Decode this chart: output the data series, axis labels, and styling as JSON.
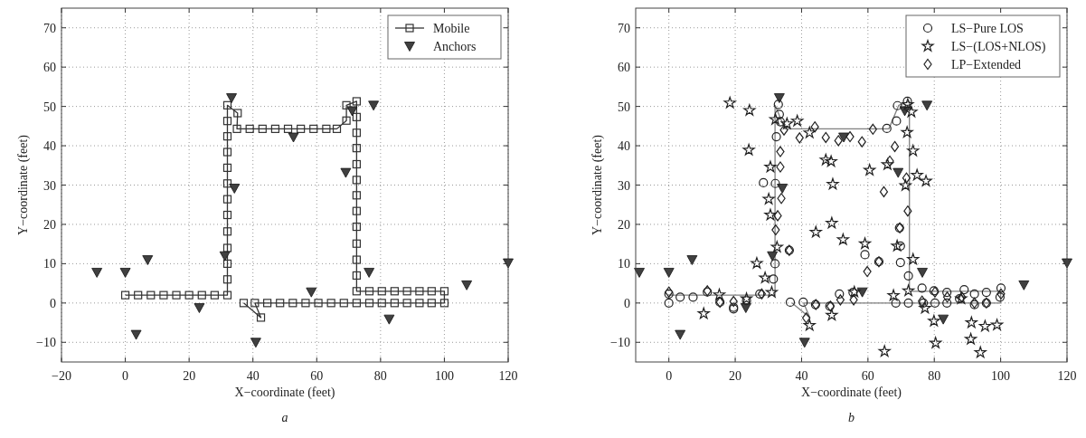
{
  "chart_data": [
    {
      "type": "scatter",
      "xlabel": "X−coordinate (feet)",
      "ylabel": "Y−coordinate (feet)",
      "annotations": [
        "a"
      ],
      "xlim": [
        -20,
        120
      ],
      "ylim": [
        -15,
        75
      ],
      "xticks": [
        -20,
        0,
        20,
        40,
        60,
        80,
        100,
        120
      ],
      "yticks": [
        -10,
        0,
        10,
        20,
        30,
        40,
        50,
        60,
        70
      ],
      "grid": true,
      "legend": "top right",
      "series": [
        {
          "name": "Mobile",
          "type": "line",
          "marker": "square",
          "color": "#333333",
          "x": [
            0,
            4,
            8,
            12,
            16,
            20,
            24,
            28,
            32,
            32,
            32,
            32,
            32,
            32,
            32,
            32,
            32,
            32,
            32,
            32,
            32,
            35.2,
            35,
            39,
            43,
            47,
            51,
            55,
            59,
            63,
            66.3,
            69.3,
            69.3,
            72.5,
            72.5,
            72.5,
            72.5,
            72.5,
            72.5,
            72.5,
            72.5,
            72.5,
            72.5,
            72.5,
            72.5,
            72.5,
            76.5,
            80.4,
            84.4,
            88.3,
            92.2,
            96,
            100,
            100,
            96,
            92.2,
            88.3,
            84.4,
            80.4,
            76.5,
            72.5,
            68.5,
            64.5,
            60.5,
            56.5,
            52.5,
            48.5,
            44.5,
            40.6,
            42.5,
            37.1
          ],
          "values": [
            2,
            2,
            2,
            2,
            2,
            2,
            2,
            2,
            2,
            6,
            10,
            14,
            18.2,
            22.4,
            26.4,
            30.4,
            34.4,
            38.4,
            42.4,
            46.3,
            50.3,
            48.3,
            44.3,
            44.3,
            44.3,
            44.3,
            44.3,
            44.3,
            44.3,
            44.3,
            44.3,
            46.4,
            50.3,
            51.3,
            47.3,
            43.3,
            39.4,
            35.3,
            31.3,
            27.4,
            23.4,
            19.4,
            15.1,
            11,
            7,
            3,
            3,
            3,
            3,
            3,
            3,
            3,
            3,
            0,
            0,
            0,
            0,
            0,
            0,
            0,
            0,
            0,
            0,
            0,
            0,
            0,
            0,
            0,
            0,
            -3.7,
            0
          ]
        },
        {
          "name": "Anchors",
          "type": "scatter",
          "marker": "triangle",
          "color": "#404040",
          "x": [
            -8.9,
            0,
            7,
            3.4,
            23.2,
            31.2,
            33.3,
            34.2,
            52.7,
            40.9,
            58.3,
            69.1,
            71.1,
            77.8,
            76.4,
            82.7,
            107,
            120
          ],
          "values": [
            7.8,
            7.8,
            11,
            -8,
            -1.2,
            12,
            52.2,
            29.2,
            42.2,
            -10,
            2.8,
            33.2,
            48.9,
            50.3,
            7.8,
            -4.1,
            4.6,
            10.2
          ]
        }
      ]
    },
    {
      "type": "scatter",
      "xlabel": "X−coordinate (feet)",
      "ylabel": "Y−coordinate (feet)",
      "annotations": [
        "b"
      ],
      "xlim": [
        -10,
        120
      ],
      "ylim": [
        -15,
        75
      ],
      "xticks": [
        0,
        20,
        40,
        60,
        80,
        100,
        120
      ],
      "yticks": [
        -10,
        0,
        10,
        20,
        30,
        40,
        50,
        60,
        70
      ],
      "grid": true,
      "legend": "top right",
      "series": [
        {
          "type": "line",
          "marker": "none",
          "color": "#808080",
          "x": [
            0,
            32,
            32,
            35,
            66.3,
            69.3,
            72.5,
            72.5,
            100,
            100,
            40.6,
            42.5,
            37.1
          ],
          "values": [
            2,
            2,
            50.3,
            44.3,
            44.3,
            50.3,
            51.3,
            3,
            3,
            0,
            0,
            -3.7,
            0
          ]
        },
        {
          "type": "scatter",
          "marker": "triangle",
          "color": "#404040",
          "x": [
            -8.9,
            0,
            7,
            3.4,
            23.2,
            31.2,
            33.3,
            34.2,
            52.7,
            40.9,
            58.3,
            69.1,
            71.1,
            77.8,
            76.4,
            82.7,
            107,
            120
          ],
          "values": [
            7.8,
            7.8,
            11,
            -8,
            -1.2,
            12,
            52.2,
            29.2,
            42.2,
            -10,
            2.8,
            33.2,
            48.9,
            50.3,
            7.8,
            -4.1,
            4.6,
            10.2
          ]
        },
        {
          "name": "LS−Pure LOS",
          "type": "scatter",
          "marker": "circle",
          "color": "#222222",
          "x": [
            0,
            0,
            3.4,
            7.3,
            11.6,
            15.4,
            19.5,
            23.4,
            27.4,
            28.5,
            31.5,
            32,
            32.1,
            33,
            33.3,
            33.6,
            32.4,
            36.3,
            36.6,
            40.5,
            44.2,
            48.5,
            51.4,
            55.5,
            59.1,
            63.3,
            65.7,
            68.6,
            68.9,
            71.9,
            69.5,
            69.8,
            69.8,
            68.4,
            72.2,
            72.2,
            76.3,
            76.7,
            79.9,
            80.2,
            83.8,
            83.8,
            87.6,
            89,
            92.1,
            92.1,
            95.7,
            95.7,
            100.1,
            99.8,
            19.5
          ],
          "values": [
            0,
            2.3,
            1.5,
            1.5,
            2.8,
            0.2,
            -1.1,
            0.6,
            2.3,
            30.6,
            6.1,
            10,
            30.4,
            50.5,
            48,
            46.1,
            42.3,
            13.4,
            0.2,
            0.2,
            -0.4,
            -0.8,
            2.3,
            2.7,
            12.3,
            10.5,
            44.4,
            46.3,
            50.2,
            51.3,
            19.1,
            14.5,
            10.3,
            0,
            6.9,
            0,
            3.8,
            0,
            3.1,
            0,
            2.7,
            0,
            1.1,
            3.4,
            2.3,
            -0.4,
            2.7,
            0,
            3.8,
            1.5,
            -1.5
          ]
        },
        {
          "name": "LS−(LOS+NLOS)",
          "type": "scatter",
          "marker": "star",
          "color": "#222222",
          "x": [
            18.4,
            24.3,
            24.1,
            32.1,
            35.6,
            38.7,
            42.4,
            47.3,
            48.9,
            49.4,
            30.6,
            30.1,
            30.6,
            32.6,
            26.5,
            29,
            44.3,
            49.1,
            52.5,
            59.1,
            60.5,
            65.9,
            68.8,
            73.6,
            74.8,
            77.5,
            71.3,
            73.6,
            72,
            73.1,
            71.8,
            10.5,
            15.2,
            23.4,
            31,
            42.4,
            49.1,
            55.9,
            67.7,
            77.2,
            79.9,
            80.4,
            91.2,
            91,
            93.9,
            95.3,
            98.9,
            65,
            88.1,
            72.2
          ],
          "values": [
            50.9,
            49,
            38.9,
            46.7,
            45.6,
            46.3,
            43.3,
            36.4,
            36,
            30.2,
            34.6,
            26.4,
            22.4,
            14.2,
            10.1,
            6.4,
            18,
            20.3,
            16.1,
            15.1,
            33.8,
            35.2,
            14.5,
            38.7,
            32.5,
            31,
            29.9,
            11.1,
            50.5,
            48.6,
            43.4,
            -2.7,
            2.1,
            1.1,
            2.7,
            -5.7,
            -3.1,
            2.8,
            1.9,
            -1.3,
            -4.6,
            -10.2,
            -5,
            -9.2,
            -12.6,
            -5.9,
            -5.6,
            -12.3,
            1.1,
            3.1
          ]
        },
        {
          "name": "LP−Extended",
          "type": "scatter",
          "marker": "diamond",
          "color": "#222222",
          "x": [
            0,
            11.6,
            15.4,
            19.5,
            28,
            33.6,
            33.6,
            33.9,
            32.8,
            32.2,
            36.3,
            34.7,
            39.4,
            44,
            47.3,
            51.1,
            54.6,
            58.2,
            61.5,
            68.1,
            66.6,
            71.6,
            64.8,
            72,
            63.3,
            59.8,
            41.4,
            44.3,
            48.7,
            51.7,
            55.7,
            80.2,
            83.9,
            88.3,
            92.1,
            95.7,
            100.1,
            76.3,
            69.6
          ],
          "values": [
            2.8,
            3.1,
            0.2,
            0.4,
            2.3,
            38.5,
            34.6,
            26.6,
            22.2,
            18.6,
            13.4,
            44,
            42,
            44.8,
            42.1,
            41.3,
            42.3,
            41,
            44.2,
            39.8,
            36.1,
            31.8,
            28.3,
            23.4,
            10.5,
            8,
            -3.8,
            -0.4,
            -0.8,
            0.8,
            0.8,
            2.8,
            1.5,
            1.5,
            0,
            0,
            2.3,
            0.5,
            19.1
          ]
        }
      ]
    }
  ]
}
